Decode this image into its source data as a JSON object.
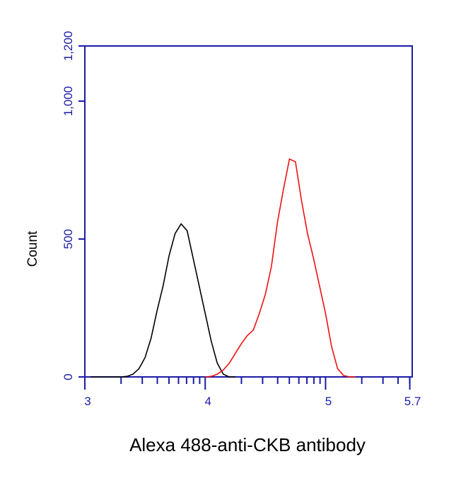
{
  "chart_data": {
    "type": "line",
    "xlabel": "Alexa 488-anti-CKB antibody",
    "ylabel": "Count",
    "xlim": [
      3,
      5.72
    ],
    "ylim": [
      0,
      1200
    ],
    "xticks": [
      3,
      4,
      5,
      5.7
    ],
    "yticks": [
      0,
      500,
      {
        "value": 1000,
        "label": "1,000"
      },
      {
        "value": 1200,
        "label": "1,200"
      }
    ],
    "axis_color": "#1c1ca8",
    "series": [
      {
        "color": "#000000",
        "x": [
          3.05,
          3.1,
          3.15,
          3.2,
          3.25,
          3.3,
          3.35,
          3.4,
          3.45,
          3.5,
          3.55,
          3.6,
          3.65,
          3.7,
          3.75,
          3.8,
          3.85,
          3.9,
          3.95,
          4.0,
          4.05,
          4.1,
          4.15,
          4.2,
          4.25
        ],
        "values": [
          0,
          0,
          0,
          0,
          0,
          0,
          2,
          10,
          30,
          70,
          140,
          240,
          330,
          440,
          520,
          555,
          530,
          430,
          330,
          230,
          130,
          50,
          10,
          0,
          0
        ]
      },
      {
        "color": "#ee1111",
        "x": [
          4.0,
          4.05,
          4.1,
          4.15,
          4.2,
          4.25,
          4.3,
          4.35,
          4.4,
          4.45,
          4.5,
          4.55,
          4.6,
          4.65,
          4.7,
          4.75,
          4.8,
          4.85,
          4.9,
          4.95,
          5.0,
          5.05,
          5.1,
          5.15,
          5.2,
          5.25
        ],
        "values": [
          0,
          2,
          10,
          25,
          50,
          85,
          120,
          150,
          170,
          230,
          300,
          400,
          560,
          680,
          790,
          780,
          640,
          520,
          430,
          330,
          230,
          110,
          30,
          5,
          0,
          0
        ]
      }
    ]
  }
}
